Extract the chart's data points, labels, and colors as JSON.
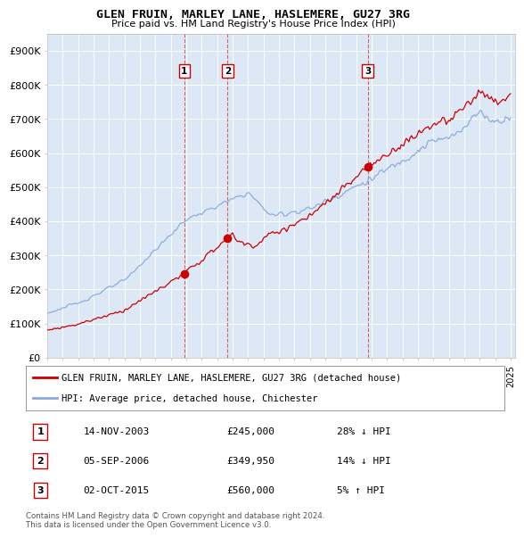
{
  "title": "GLEN FRUIN, MARLEY LANE, HASLEMERE, GU27 3RG",
  "subtitle": "Price paid vs. HM Land Registry's House Price Index (HPI)",
  "legend_property": "GLEN FRUIN, MARLEY LANE, HASLEMERE, GU27 3RG (detached house)",
  "legend_hpi": "HPI: Average price, detached house, Chichester",
  "property_color": "#cc0000",
  "hpi_color": "#88aadd",
  "background_color": "#ffffff",
  "plot_bg_color": "#dce8f5",
  "grid_color": "#ffffff",
  "ylim": [
    0,
    950000
  ],
  "yticks": [
    0,
    100000,
    200000,
    300000,
    400000,
    500000,
    600000,
    700000,
    800000,
    900000
  ],
  "ytick_labels": [
    "£0",
    "£100K",
    "£200K",
    "£300K",
    "£400K",
    "£500K",
    "£600K",
    "£700K",
    "£800K",
    "£900K"
  ],
  "sale_times": [
    2003.87,
    2006.67,
    2015.75
  ],
  "sale_prices": [
    245000,
    349950,
    560000
  ],
  "sale_labels": [
    "1",
    "2",
    "3"
  ],
  "sale_info": [
    {
      "label": "1",
      "date": "14-NOV-2003",
      "price": "£245,000",
      "hpi_rel": "28% ↓ HPI"
    },
    {
      "label": "2",
      "date": "05-SEP-2006",
      "price": "£349,950",
      "hpi_rel": "14% ↓ HPI"
    },
    {
      "label": "3",
      "date": "02-OCT-2015",
      "price": "£560,000",
      "hpi_rel": "5% ↑ HPI"
    }
  ],
  "footer": "Contains HM Land Registry data © Crown copyright and database right 2024.\nThis data is licensed under the Open Government Licence v3.0.",
  "xstart_year": 1995,
  "xend_year": 2025
}
